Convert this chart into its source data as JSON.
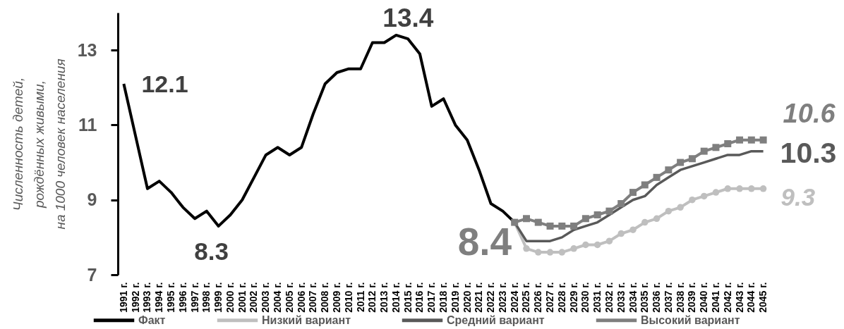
{
  "chart_data": {
    "type": "line",
    "ylabel": "Численность детей,\nрождённых живыми,\nна 1000 человек населения",
    "categories": [
      "1991 г.",
      "1992 г.",
      "1993 г.",
      "1994 г.",
      "1995 г.",
      "1996 г.",
      "1997 г.",
      "1998 г.",
      "1999 г.",
      "2000 г.",
      "2001 г.",
      "2002 г.",
      "2003 г.",
      "2004 г.",
      "2005 г.",
      "2006 г.",
      "2007 г.",
      "2008 г.",
      "2009 г.",
      "2010 г.",
      "2011 г.",
      "2012 г.",
      "2013 г.",
      "2014 г.",
      "2015 г.",
      "2016 г.",
      "2017 г.",
      "2018 г.",
      "2019 г.",
      "2020 г.",
      "2021 г.",
      "2022 г.",
      "2023 г.",
      "2024 г.",
      "2025 г.",
      "2026 г.",
      "2027 г.",
      "2028 г.",
      "2029 г.",
      "2030 г.",
      "2031 г.",
      "2032 г.",
      "2033 г.",
      "2034 г.",
      "2035 г.",
      "2036 г.",
      "2037 г.",
      "2038 г.",
      "2039 г.",
      "2040 г.",
      "2041 г.",
      "2042 г.",
      "2043 г.",
      "2044 г.",
      "2045 г."
    ],
    "series": [
      {
        "name": "Факт",
        "color": "#000000",
        "marker": "none",
        "values": [
          12.1,
          10.7,
          9.3,
          9.5,
          9.2,
          8.8,
          8.5,
          8.7,
          8.3,
          8.6,
          9.0,
          9.6,
          10.2,
          10.4,
          10.2,
          10.4,
          11.3,
          12.1,
          12.4,
          12.5,
          12.5,
          13.2,
          13.2,
          13.4,
          13.3,
          12.9,
          11.5,
          11.7,
          11.0,
          10.6,
          9.8,
          8.9,
          8.7,
          8.4,
          null,
          null,
          null,
          null,
          null,
          null,
          null,
          null,
          null,
          null,
          null,
          null,
          null,
          null,
          null,
          null,
          null,
          null,
          null,
          null,
          null
        ]
      },
      {
        "name": "Низкий вариант",
        "color": "#bfbfbf",
        "marker": "circle",
        "values": [
          null,
          null,
          null,
          null,
          null,
          null,
          null,
          null,
          null,
          null,
          null,
          null,
          null,
          null,
          null,
          null,
          null,
          null,
          null,
          null,
          null,
          null,
          null,
          null,
          null,
          null,
          null,
          null,
          null,
          null,
          null,
          null,
          null,
          8.4,
          7.7,
          7.6,
          7.6,
          7.6,
          7.7,
          7.8,
          7.8,
          7.9,
          8.1,
          8.2,
          8.4,
          8.5,
          8.7,
          8.8,
          9.0,
          9.1,
          9.2,
          9.3,
          9.3,
          9.3,
          9.3
        ]
      },
      {
        "name": "Средний вариант",
        "color": "#595959",
        "marker": "none",
        "values": [
          null,
          null,
          null,
          null,
          null,
          null,
          null,
          null,
          null,
          null,
          null,
          null,
          null,
          null,
          null,
          null,
          null,
          null,
          null,
          null,
          null,
          null,
          null,
          null,
          null,
          null,
          null,
          null,
          null,
          null,
          null,
          null,
          null,
          8.4,
          7.9,
          7.9,
          7.9,
          8.0,
          8.2,
          8.3,
          8.4,
          8.6,
          8.8,
          9.0,
          9.1,
          9.4,
          9.6,
          9.8,
          9.9,
          10.0,
          10.1,
          10.2,
          10.2,
          10.3,
          10.3
        ]
      },
      {
        "name": "Высокий вариант",
        "color": "#7f7f7f",
        "marker": "square",
        "values": [
          null,
          null,
          null,
          null,
          null,
          null,
          null,
          null,
          null,
          null,
          null,
          null,
          null,
          null,
          null,
          null,
          null,
          null,
          null,
          null,
          null,
          null,
          null,
          null,
          null,
          null,
          null,
          null,
          null,
          null,
          null,
          null,
          null,
          8.4,
          8.5,
          8.4,
          8.3,
          8.3,
          8.3,
          8.5,
          8.6,
          8.7,
          8.9,
          9.2,
          9.4,
          9.6,
          9.8,
          10.0,
          10.1,
          10.3,
          10.4,
          10.5,
          10.6,
          10.6,
          10.6
        ]
      }
    ],
    "ylim": [
      7,
      14
    ],
    "yticks": [
      7,
      9,
      11,
      13
    ],
    "legend": "bottom",
    "annotations": [
      {
        "text": "12.1",
        "x": "1991 г.",
        "y": 12.1
      },
      {
        "text": "13.4",
        "x": "2014 г.",
        "y": 13.4
      },
      {
        "text": "8.3",
        "x": "1999 г.",
        "y": 8.3
      },
      {
        "text": "8.4",
        "x": "2024 г.",
        "y": 8.4
      },
      {
        "text": "10.6",
        "x": "2045 г.",
        "y": 10.6
      },
      {
        "text": "10.3",
        "x": "2045 г.",
        "y": 10.3
      },
      {
        "text": "9.3",
        "x": "2045 г.",
        "y": 9.3
      }
    ]
  }
}
